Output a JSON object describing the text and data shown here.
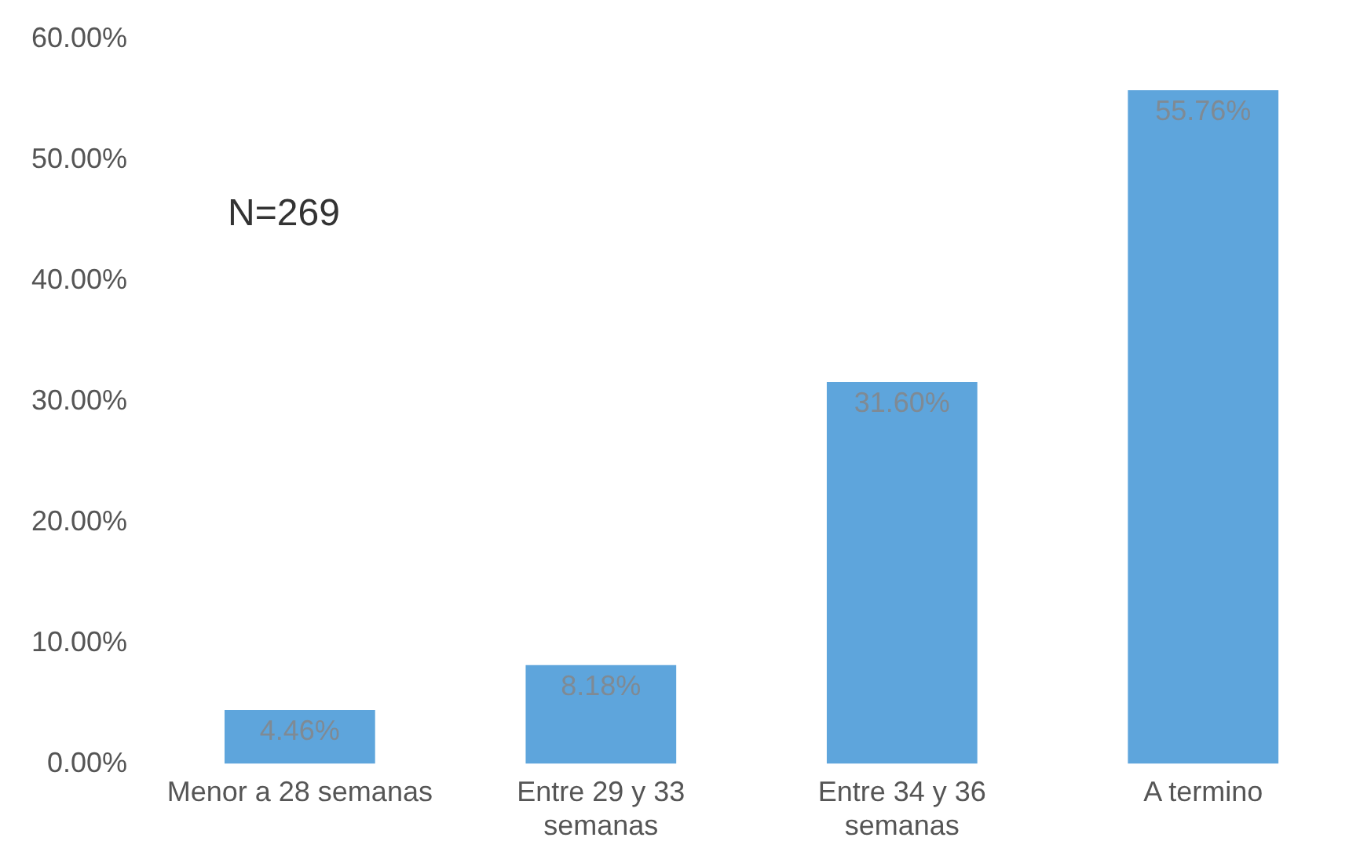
{
  "chart_data": {
    "type": "bar",
    "categories": [
      "Menor a 28 semanas",
      "Entre 29 y 33 semanas",
      "Entre 34 y 36 semanas",
      "A termino"
    ],
    "values": [
      4.46,
      8.18,
      31.6,
      55.76
    ],
    "color": "#5ea5dc",
    "value_labels": [
      "4.46%",
      "8.18%",
      "31.60%",
      "55.76%"
    ],
    "ylim": [
      0,
      60
    ],
    "yticks": [
      {
        "value": 0,
        "label": "0.00%"
      },
      {
        "value": 10,
        "label": "10.00%"
      },
      {
        "value": 20,
        "label": "20.00%"
      },
      {
        "value": 30,
        "label": "30.00%"
      },
      {
        "value": 40,
        "label": "40.00%"
      },
      {
        "value": 50,
        "label": "50.00%"
      },
      {
        "value": 60,
        "label": "60.00%"
      }
    ],
    "annotations": [
      "N=269"
    ],
    "grid": false,
    "legend": false
  }
}
